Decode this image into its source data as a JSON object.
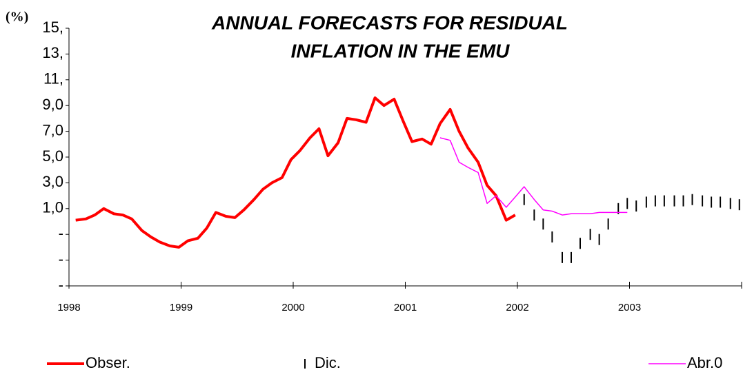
{
  "chart_data": {
    "type": "line",
    "title": [
      "ANNUAL FORECASTS FOR RESIDUAL",
      "INFLATION IN THE EMU"
    ],
    "y_label": "(%)",
    "xlim": [
      1998,
      2004
    ],
    "xticks": [
      1998,
      1999,
      2000,
      2001,
      2002,
      2003
    ],
    "ylim": [
      -5,
      15
    ],
    "yticks": [
      {
        "value": 15,
        "label": "15,"
      },
      {
        "value": 13,
        "label": "13,"
      },
      {
        "value": 11,
        "label": "11,"
      },
      {
        "value": 9,
        "label": "9,0"
      },
      {
        "value": 7,
        "label": "7,0"
      },
      {
        "value": 5,
        "label": "5,0"
      },
      {
        "value": 3,
        "label": "3,0"
      },
      {
        "value": 1,
        "label": "1,0"
      },
      {
        "value": -1,
        "label": "-"
      },
      {
        "value": -3,
        "label": "-"
      },
      {
        "value": -5,
        "label": "-"
      }
    ],
    "series": [
      {
        "name": "Obser.",
        "color": "#ff0000",
        "style": "line",
        "x": [
          1998.06,
          1998.15,
          1998.23,
          1998.31,
          1998.4,
          1998.48,
          1998.56,
          1998.65,
          1998.73,
          1998.81,
          1998.9,
          1998.98,
          1999.06,
          1999.15,
          1999.23,
          1999.31,
          1999.4,
          1999.48,
          1999.56,
          1999.65,
          1999.73,
          1999.81,
          1999.9,
          1999.98,
          2000.06,
          2000.15,
          2000.23,
          2000.31,
          2000.4,
          2000.48,
          2000.56,
          2000.65,
          2000.73,
          2000.81,
          2000.9,
          2000.98,
          2001.06,
          2001.15,
          2001.23,
          2001.31,
          2001.4,
          2001.48,
          2001.56,
          2001.65,
          2001.73,
          2001.81,
          2001.9,
          2001.98
        ],
        "values": [
          0.1,
          0.2,
          0.5,
          1.0,
          0.6,
          0.5,
          0.2,
          -0.7,
          -1.2,
          -1.6,
          -1.9,
          -2.0,
          -1.5,
          -1.3,
          -0.5,
          0.7,
          0.4,
          0.3,
          0.9,
          1.7,
          2.5,
          3.0,
          3.4,
          4.8,
          5.5,
          6.5,
          7.2,
          5.1,
          6.1,
          8.0,
          7.9,
          7.7,
          9.6,
          9.0,
          9.5,
          7.8,
          6.2,
          6.4,
          6.0,
          7.6,
          8.7,
          7.0,
          5.7,
          4.6,
          2.8,
          2.0,
          0.1,
          0.5
        ]
      },
      {
        "name": "Dic.",
        "color": "#000000",
        "style": "marker",
        "x": [
          2002.06,
          2002.15,
          2002.23,
          2002.31,
          2002.4,
          2002.48,
          2002.56,
          2002.65,
          2002.73,
          2002.81,
          2002.9,
          2002.98,
          2003.06,
          2003.15,
          2003.23,
          2003.31,
          2003.4,
          2003.48,
          2003.56,
          2003.65,
          2003.73,
          2003.81,
          2003.9,
          2003.98
        ],
        "values": [
          1.7,
          0.5,
          -0.2,
          -1.2,
          -2.8,
          -2.8,
          -1.7,
          -1.0,
          -1.4,
          -0.2,
          1.0,
          1.4,
          1.2,
          1.5,
          1.6,
          1.6,
          1.6,
          1.6,
          1.7,
          1.6,
          1.5,
          1.5,
          1.4,
          1.3
        ]
      },
      {
        "name": "Abr.0",
        "color": "#ff00ff",
        "style": "line",
        "x": [
          2001.31,
          2001.4,
          2001.48,
          2001.56,
          2001.65,
          2001.73,
          2001.81,
          2001.9,
          2001.98,
          2002.06,
          2002.15,
          2002.23,
          2002.31,
          2002.4,
          2002.48,
          2002.56,
          2002.65,
          2002.73,
          2002.81,
          2002.9,
          2002.98
        ],
        "values": [
          6.5,
          6.3,
          4.6,
          4.2,
          3.8,
          1.4,
          2.0,
          1.1,
          1.9,
          2.7,
          1.7,
          0.9,
          0.8,
          0.5,
          0.6,
          0.6,
          0.6,
          0.7,
          0.7,
          0.7,
          0.7
        ]
      }
    ]
  }
}
